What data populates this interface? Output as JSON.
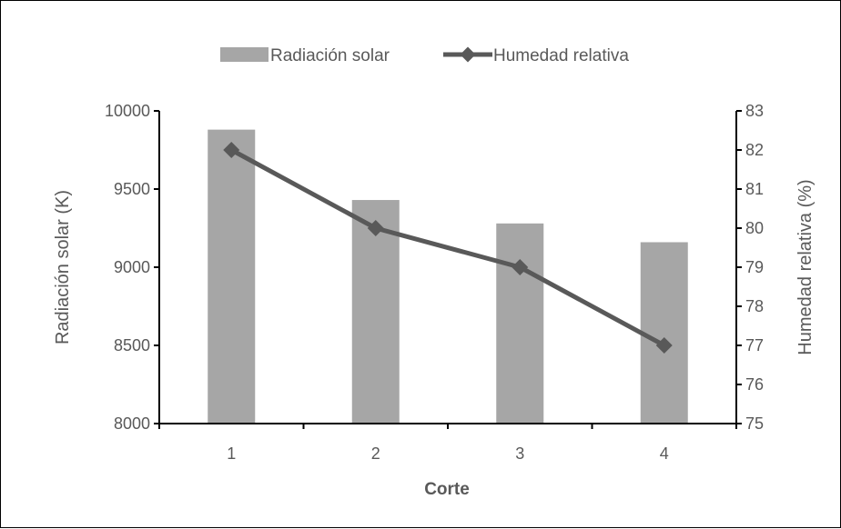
{
  "chart_data": {
    "type": "bar+line",
    "categories": [
      "1",
      "2",
      "3",
      "4"
    ],
    "xlabel": "Corte",
    "series": [
      {
        "name": "Radiación solar",
        "type": "bar",
        "axis": "left",
        "values": [
          9880,
          9430,
          9280,
          9160
        ],
        "color": "#a6a6a6"
      },
      {
        "name": "Humedad relativa",
        "type": "line",
        "axis": "right",
        "marker": "diamond",
        "values": [
          82,
          80,
          79,
          77
        ],
        "color": "#595959"
      }
    ],
    "y_left": {
      "label": "Radiación solar (K)",
      "ylim": [
        8000,
        10000
      ],
      "ticks": [
        "8000",
        "8500",
        "9000",
        "9500",
        "10000"
      ]
    },
    "y_right": {
      "label": "Humedad relativa (%)",
      "ylim": [
        75,
        83
      ],
      "ticks": [
        "75",
        "76",
        "77",
        "78",
        "79",
        "80",
        "81",
        "82",
        "83"
      ]
    },
    "grid": false,
    "legend_position": "top"
  }
}
